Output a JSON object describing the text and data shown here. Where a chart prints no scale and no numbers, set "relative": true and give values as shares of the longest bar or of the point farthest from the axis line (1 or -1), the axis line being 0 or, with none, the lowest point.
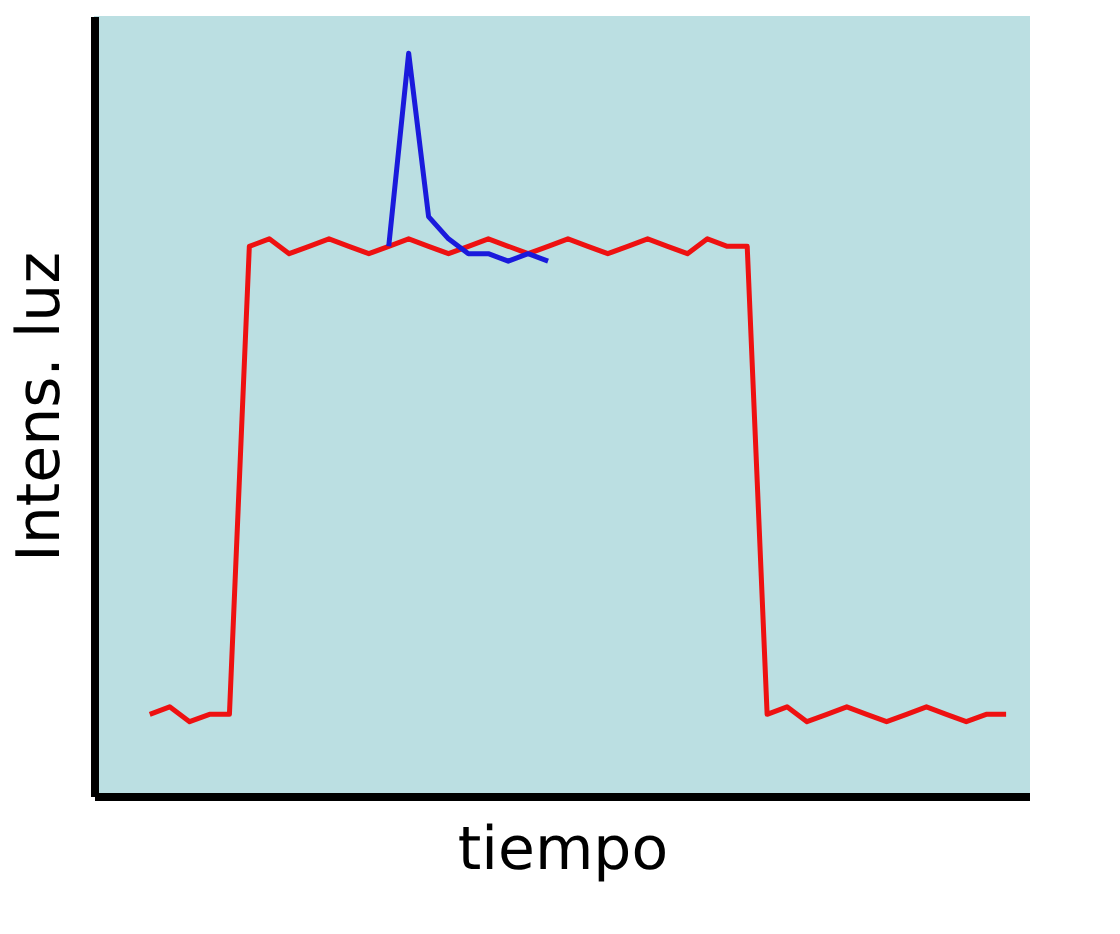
{
  "chart_data": {
    "type": "line",
    "relative": true,
    "xlabel": "tiempo",
    "ylabel": "Intens. luz",
    "grid": false,
    "marker": "none",
    "line_style": "solid",
    "categories": [
      null,
      null,
      null,
      null,
      null,
      null,
      null,
      null,
      null,
      null,
      null,
      null,
      null,
      null,
      null,
      null,
      null,
      null,
      null,
      null,
      null,
      null,
      null,
      null,
      null,
      null,
      null,
      null,
      null,
      null,
      null,
      null,
      null,
      null,
      null,
      null,
      null,
      null,
      null,
      null,
      null,
      null,
      null,
      null
    ],
    "series": [
      {
        "color": "#ee1111",
        "values": [
          0.11,
          0.12,
          0.1,
          0.11,
          0.11,
          0.74,
          0.75,
          0.73,
          0.74,
          0.75,
          0.74,
          0.73,
          0.74,
          0.75,
          0.74,
          0.73,
          0.74,
          0.75,
          0.74,
          0.73,
          0.74,
          0.75,
          0.74,
          0.73,
          0.74,
          0.75,
          0.74,
          0.73,
          0.75,
          0.74,
          0.74,
          0.11,
          0.12,
          0.1,
          0.11,
          0.12,
          0.11,
          0.1,
          0.11,
          0.12,
          0.11,
          0.1,
          0.11,
          0.11
        ]
      },
      {
        "color": "#1a1adc",
        "values": [
          null,
          null,
          null,
          null,
          null,
          null,
          null,
          null,
          null,
          null,
          null,
          null,
          0.74,
          1.0,
          0.78,
          0.75,
          0.73,
          0.73,
          0.72,
          0.73,
          0.72,
          null,
          null,
          null,
          null,
          null,
          null,
          null,
          null,
          null,
          null,
          null,
          null,
          null,
          null,
          null,
          null,
          null,
          null,
          null,
          null,
          null,
          null,
          null
        ]
      }
    ]
  }
}
